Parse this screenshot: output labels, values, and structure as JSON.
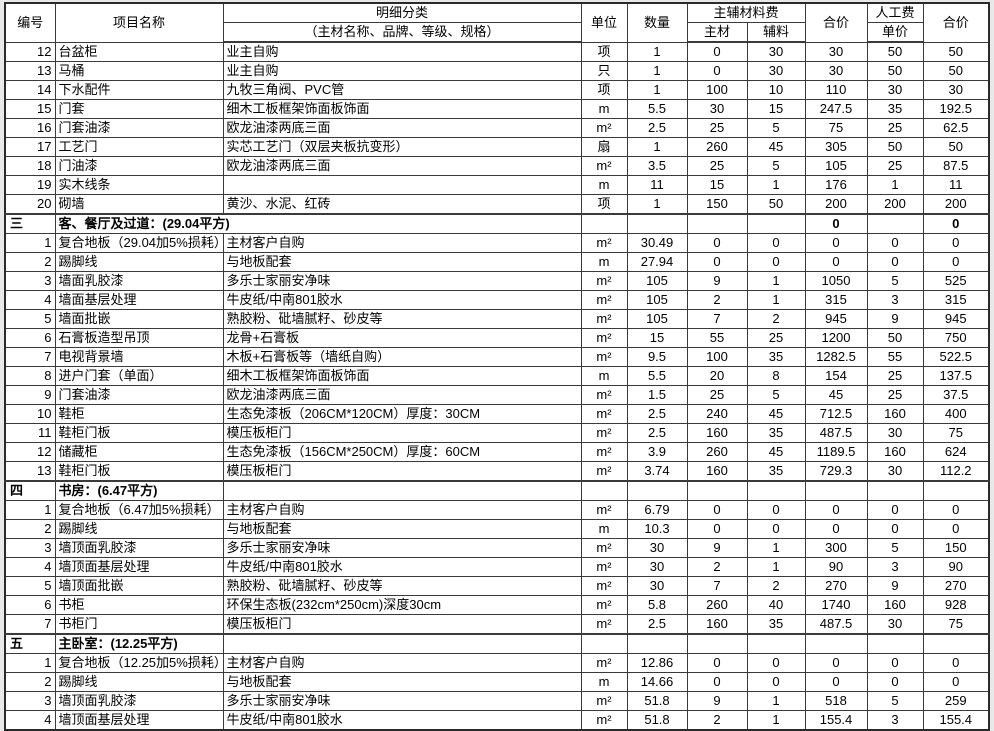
{
  "header": {
    "col_no": "编号",
    "col_name": "项目名称",
    "col_detail": "明细分类",
    "col_detail_sub": "（主材名称、品牌、等级、规格）",
    "col_unit": "单位",
    "col_qty": "数量",
    "col_material_group": "主辅材料费",
    "col_main": "主材",
    "col_aux": "辅料",
    "col_total1": "合价",
    "col_labor_line1": "人工费",
    "col_labor_line2": "单价",
    "col_total2": "合价"
  },
  "rows": [
    {
      "type": "item",
      "no": "12",
      "name": "台盆柜",
      "detail": "业主自购",
      "unit": "项",
      "qty": "1",
      "main": "0",
      "aux": "30",
      "total1": "30",
      "labor": "50",
      "total2": "50"
    },
    {
      "type": "item",
      "no": "13",
      "name": "马桶",
      "detail": "业主自购",
      "unit": "只",
      "qty": "1",
      "main": "0",
      "aux": "30",
      "total1": "30",
      "labor": "50",
      "total2": "50"
    },
    {
      "type": "item",
      "no": "14",
      "name": "下水配件",
      "detail": "九牧三角阀、PVC管",
      "unit": "项",
      "qty": "1",
      "main": "100",
      "aux": "10",
      "total1": "110",
      "labor": "30",
      "total2": "30"
    },
    {
      "type": "item",
      "no": "15",
      "name": "门套",
      "detail": "细木工板框架饰面板饰面",
      "unit": "m",
      "qty": "5.5",
      "main": "30",
      "aux": "15",
      "total1": "247.5",
      "labor": "35",
      "total2": "192.5"
    },
    {
      "type": "item",
      "no": "16",
      "name": "门套油漆",
      "detail": "欧龙油漆两底三面",
      "unit": "m²",
      "qty": "2.5",
      "main": "25",
      "aux": "5",
      "total1": "75",
      "labor": "25",
      "total2": "62.5"
    },
    {
      "type": "item",
      "no": "17",
      "name": "工艺门",
      "detail": "实芯工艺门（双层夹板抗变形）",
      "unit": "扇",
      "qty": "1",
      "main": "260",
      "aux": "45",
      "total1": "305",
      "labor": "50",
      "total2": "50"
    },
    {
      "type": "item",
      "no": "18",
      "name": "门油漆",
      "detail": "欧龙油漆两底三面",
      "unit": "m²",
      "qty": "3.5",
      "main": "25",
      "aux": "5",
      "total1": "105",
      "labor": "25",
      "total2": "87.5"
    },
    {
      "type": "item",
      "no": "19",
      "name": "实木线条",
      "detail": "",
      "unit": "m",
      "qty": "11",
      "main": "15",
      "aux": "1",
      "total1": "176",
      "labor": "1",
      "total2": "11"
    },
    {
      "type": "item",
      "no": "20",
      "name": "砌墙",
      "detail": "黄沙、水泥、红砖",
      "unit": "项",
      "qty": "1",
      "main": "150",
      "aux": "50",
      "total1": "200",
      "labor": "200",
      "total2": "200"
    },
    {
      "type": "section",
      "no": "三",
      "title": "客、餐厅及过道：(29.04平方)",
      "merged": true,
      "total1": "0",
      "total2": "0"
    },
    {
      "type": "item",
      "no": "1",
      "name": "复合地板（29.04加5%损耗）",
      "detail": "主材客户自购",
      "unit": "m²",
      "qty": "30.49",
      "main": "0",
      "aux": "0",
      "total1": "0",
      "labor": "0",
      "total2": "0"
    },
    {
      "type": "item",
      "no": "2",
      "name": "踢脚线",
      "detail": "与地板配套",
      "unit": "m",
      "qty": "27.94",
      "main": "0",
      "aux": "0",
      "total1": "0",
      "labor": "0",
      "total2": "0"
    },
    {
      "type": "item",
      "no": "3",
      "name": "墙面乳胶漆",
      "detail": "多乐士家丽安净味",
      "unit": "m²",
      "qty": "105",
      "main": "9",
      "aux": "1",
      "total1": "1050",
      "labor": "5",
      "total2": "525"
    },
    {
      "type": "item",
      "no": "4",
      "name": "墙面基层处理",
      "detail": "牛皮纸/中南801胶水",
      "unit": "m²",
      "qty": "105",
      "main": "2",
      "aux": "1",
      "total1": "315",
      "labor": "3",
      "total2": "315"
    },
    {
      "type": "item",
      "no": "5",
      "name": "墙面批嵌",
      "detail": "熟胶粉、砒墙腻籽、砂皮等",
      "unit": "m²",
      "qty": "105",
      "main": "7",
      "aux": "2",
      "total1": "945",
      "labor": "9",
      "total2": "945"
    },
    {
      "type": "item",
      "no": "6",
      "name": "石膏板造型吊顶",
      "detail": "龙骨+石膏板",
      "unit": "m²",
      "qty": "15",
      "main": "55",
      "aux": "25",
      "total1": "1200",
      "labor": "50",
      "total2": "750"
    },
    {
      "type": "item",
      "no": "7",
      "name": "电视背景墙",
      "detail": "木板+石膏板等（墙纸自购）",
      "unit": "m²",
      "qty": "9.5",
      "main": "100",
      "aux": "35",
      "total1": "1282.5",
      "labor": "55",
      "total2": "522.5"
    },
    {
      "type": "item",
      "no": "8",
      "name": "进户门套（单面）",
      "detail": "细木工板框架饰面板饰面",
      "unit": "m",
      "qty": "5.5",
      "main": "20",
      "aux": "8",
      "total1": "154",
      "labor": "25",
      "total2": "137.5"
    },
    {
      "type": "item",
      "no": "9",
      "name": "门套油漆",
      "detail": "欧龙油漆两底三面",
      "unit": "m²",
      "qty": "1.5",
      "main": "25",
      "aux": "5",
      "total1": "45",
      "labor": "25",
      "total2": "37.5"
    },
    {
      "type": "item",
      "no": "10",
      "name": "鞋柜",
      "detail": "生态免漆板（206CM*120CM）厚度：30CM",
      "unit": "m²",
      "qty": "2.5",
      "main": "240",
      "aux": "45",
      "total1": "712.5",
      "labor": "160",
      "total2": "400"
    },
    {
      "type": "item",
      "no": "11",
      "name": "鞋柜门板",
      "detail": "模压板柜门",
      "unit": "m²",
      "qty": "2.5",
      "main": "160",
      "aux": "35",
      "total1": "487.5",
      "labor": "30",
      "total2": "75"
    },
    {
      "type": "item",
      "no": "12",
      "name": "储藏柜",
      "detail": "生态免漆板（156CM*250CM）厚度：60CM",
      "unit": "m²",
      "qty": "3.9",
      "main": "260",
      "aux": "45",
      "total1": "1189.5",
      "labor": "160",
      "total2": "624"
    },
    {
      "type": "item",
      "no": "13",
      "name": "鞋柜门板",
      "detail": "模压板柜门",
      "unit": "m²",
      "qty": "3.74",
      "main": "160",
      "aux": "35",
      "total1": "729.3",
      "labor": "30",
      "total2": "112.2"
    },
    {
      "type": "section",
      "no": "四",
      "title": "书房：(6.47平方)",
      "merged": false,
      "total1": "",
      "total2": ""
    },
    {
      "type": "item",
      "no": "1",
      "name": "复合地板（6.47加5%损耗）",
      "detail": "主材客户自购",
      "unit": "m²",
      "qty": "6.79",
      "main": "0",
      "aux": "0",
      "total1": "0",
      "labor": "0",
      "total2": "0"
    },
    {
      "type": "item",
      "no": "2",
      "name": "踢脚线",
      "detail": "与地板配套",
      "unit": "m",
      "qty": "10.3",
      "main": "0",
      "aux": "0",
      "total1": "0",
      "labor": "0",
      "total2": "0"
    },
    {
      "type": "item",
      "no": "3",
      "name": "墙顶面乳胶漆",
      "detail": "多乐士家丽安净味",
      "unit": "m²",
      "qty": "30",
      "main": "9",
      "aux": "1",
      "total1": "300",
      "labor": "5",
      "total2": "150"
    },
    {
      "type": "item",
      "no": "4",
      "name": "墙顶面基层处理",
      "detail": "牛皮纸/中南801胶水",
      "unit": "m²",
      "qty": "30",
      "main": "2",
      "aux": "1",
      "total1": "90",
      "labor": "3",
      "total2": "90"
    },
    {
      "type": "item",
      "no": "5",
      "name": "墙顶面批嵌",
      "detail": "熟胶粉、砒墙腻籽、砂皮等",
      "unit": "m²",
      "qty": "30",
      "main": "7",
      "aux": "2",
      "total1": "270",
      "labor": "9",
      "total2": "270"
    },
    {
      "type": "item",
      "no": "6",
      "name": "书柜",
      "detail": "环保生态板(232cm*250cm)深度30cm",
      "unit": "m²",
      "qty": "5.8",
      "main": "260",
      "aux": "40",
      "total1": "1740",
      "labor": "160",
      "total2": "928"
    },
    {
      "type": "item",
      "no": "7",
      "name": "书柜门",
      "detail": "模压板柜门",
      "unit": "m²",
      "qty": "2.5",
      "main": "160",
      "aux": "35",
      "total1": "487.5",
      "labor": "30",
      "total2": "75"
    },
    {
      "type": "section",
      "no": "五",
      "title": "主卧室：(12.25平方)",
      "merged": false,
      "total1": "",
      "total2": ""
    },
    {
      "type": "item",
      "no": "1",
      "name": "复合地板（12.25加5%损耗）",
      "detail": "主材客户自购",
      "unit": "m²",
      "qty": "12.86",
      "main": "0",
      "aux": "0",
      "total1": "0",
      "labor": "0",
      "total2": "0"
    },
    {
      "type": "item",
      "no": "2",
      "name": "踢脚线",
      "detail": "与地板配套",
      "unit": "m",
      "qty": "14.66",
      "main": "0",
      "aux": "0",
      "total1": "0",
      "labor": "0",
      "total2": "0"
    },
    {
      "type": "item",
      "no": "3",
      "name": "墙顶面乳胶漆",
      "detail": "多乐士家丽安净味",
      "unit": "m²",
      "qty": "51.8",
      "main": "9",
      "aux": "1",
      "total1": "518",
      "labor": "5",
      "total2": "259"
    },
    {
      "type": "item",
      "no": "4",
      "name": "墙顶面基层处理",
      "detail": "牛皮纸/中南801胶水",
      "unit": "m²",
      "qty": "51.8",
      "main": "2",
      "aux": "1",
      "total1": "155.4",
      "labor": "3",
      "total2": "155.4"
    }
  ]
}
